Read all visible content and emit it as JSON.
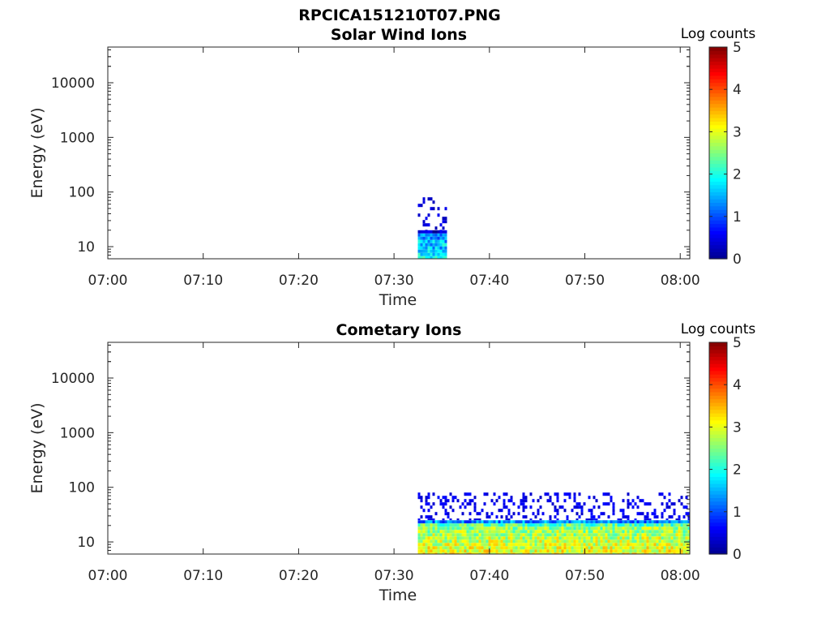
{
  "figure_title": "RPCICA151210T07.PNG",
  "colormap": [
    "#00008f",
    "#0000ff",
    "#0080ff",
    "#00ffff",
    "#80ff80",
    "#ffff00",
    "#ff8000",
    "#ff0000",
    "#800000"
  ],
  "chart_data": [
    {
      "type": "heatmap",
      "title": "Solar Wind Ions",
      "xlabel": "Time",
      "ylabel": "Energy (eV)",
      "y_scale": "log",
      "xlim": [
        "07:00",
        "08:01"
      ],
      "ylim": [
        6,
        45000
      ],
      "x_ticks": [
        "07:00",
        "07:10",
        "07:20",
        "07:30",
        "07:40",
        "07:50",
        "08:00"
      ],
      "y_ticks": [
        "10",
        "100",
        "1000",
        "10000"
      ],
      "colorbar": {
        "label": "Log counts",
        "range": [
          0,
          5
        ],
        "ticks": [
          "0",
          "1",
          "2",
          "3",
          "4",
          "5"
        ]
      },
      "grid": false,
      "regions": [
        {
          "time_start": "07:32:30",
          "time_end": "07:35:30",
          "energy_min": 6,
          "energy_max": 20,
          "log_counts": 1.6
        },
        {
          "time_start": "07:32:30",
          "time_end": "07:35:30",
          "energy_min": 20,
          "energy_max": 80,
          "log_counts": 0.2,
          "sparse": true
        }
      ]
    },
    {
      "type": "heatmap",
      "title": "Cometary Ions",
      "xlabel": "Time",
      "ylabel": "Energy (eV)",
      "y_scale": "log",
      "xlim": [
        "07:00",
        "08:01"
      ],
      "ylim": [
        6,
        45000
      ],
      "x_ticks": [
        "07:00",
        "07:10",
        "07:20",
        "07:30",
        "07:40",
        "07:50",
        "08:00"
      ],
      "y_ticks": [
        "10",
        "100",
        "1000",
        "10000"
      ],
      "colorbar": {
        "label": "Log counts",
        "range": [
          0,
          5
        ],
        "ticks": [
          "0",
          "1",
          "2",
          "3",
          "4",
          "5"
        ]
      },
      "grid": false,
      "regions": [
        {
          "time_start": "07:32:30",
          "time_end": "08:01",
          "energy_min": 6,
          "energy_max": 25,
          "log_counts": 2.8
        },
        {
          "time_start": "07:32:30",
          "time_end": "08:01",
          "energy_min": 25,
          "energy_max": 80,
          "log_counts": 0.3,
          "sparse": true
        }
      ]
    }
  ]
}
